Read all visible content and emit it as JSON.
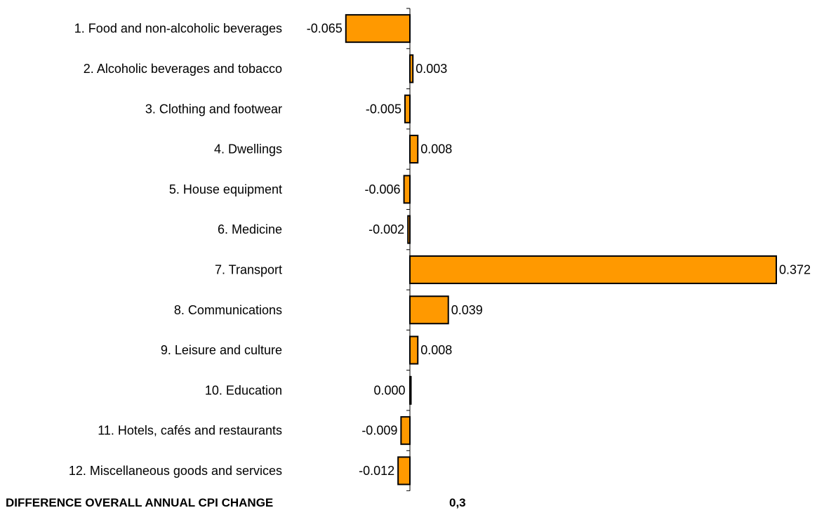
{
  "chart_data": {
    "type": "bar",
    "orientation": "horizontal",
    "categories": [
      "1. Food and non-alcoholic beverages",
      "2. Alcoholic beverages and tobacco",
      "3. Clothing and footwear",
      "4. Dwellings",
      "5. House equipment",
      "6. Medicine",
      "7. Transport",
      "8. Communications",
      "9. Leisure and culture",
      "10. Education",
      "11. Hotels, cafés and restaurants",
      "12. Miscellaneous goods and services"
    ],
    "values": [
      -0.065,
      0.003,
      -0.005,
      0.008,
      -0.006,
      -0.002,
      0.372,
      0.039,
      0.008,
      0.0,
      -0.009,
      -0.012
    ],
    "value_labels": [
      "-0.065",
      "0.003",
      "-0.005",
      "0.008",
      "-0.006",
      "-0.002",
      "0.372",
      "0.039",
      "0.008",
      "0.000",
      "-0.009",
      "-0.012"
    ],
    "xlim": [
      -0.065,
      0.372
    ],
    "grid": false,
    "legend": "none",
    "bar_color": "#FF9900",
    "bar_stroke": "#000000"
  },
  "footer": {
    "label": "DIFFERENCE OVERALL ANNUAL CPI CHANGE",
    "value": "0,3"
  }
}
